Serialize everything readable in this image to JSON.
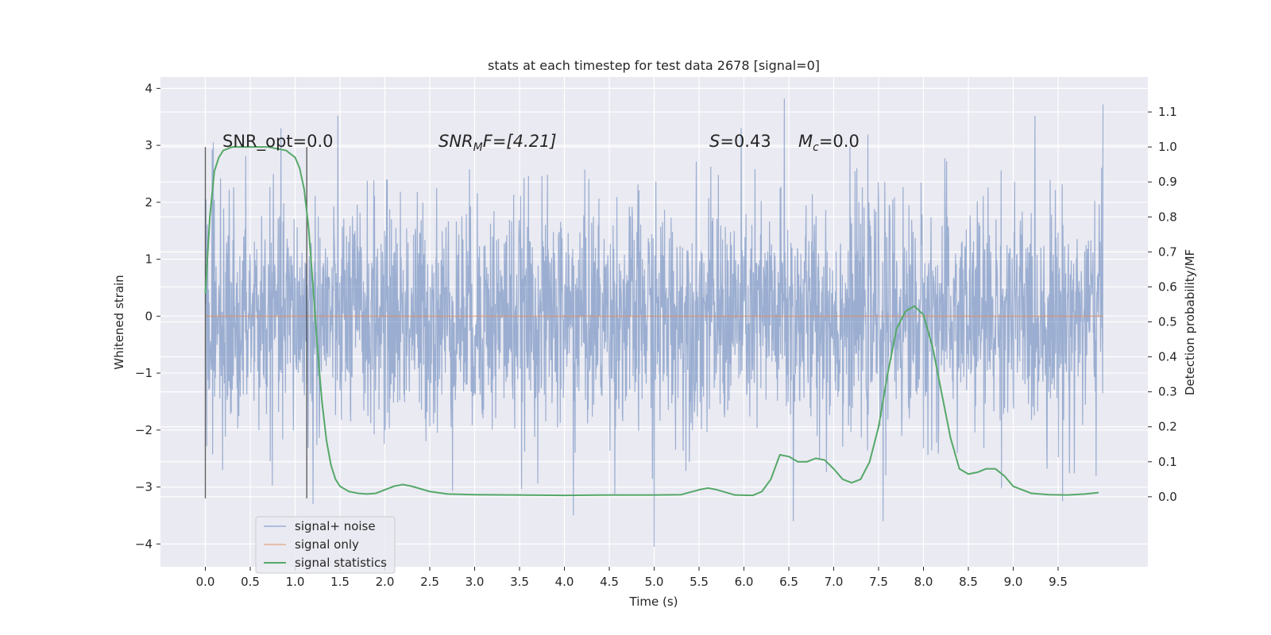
{
  "chart_data": {
    "type": "line",
    "title": "stats at each timestep for test data 2678 [signal=0]",
    "xlabel": "Time (s)",
    "ylabel": "Whitened strain",
    "ylabel_right": "Detection probability/MF",
    "xlim": [
      -0.5,
      10.5
    ],
    "ylim": [
      -4.4,
      4.2
    ],
    "ylim_right": [
      -0.2,
      1.2
    ],
    "x_ticks": [
      "0.0",
      "0.5",
      "1.0",
      "1.5",
      "2.0",
      "2.5",
      "3.0",
      "3.5",
      "4.0",
      "4.5",
      "5.0",
      "5.5",
      "6.0",
      "6.5",
      "7.0",
      "7.5",
      "8.0",
      "8.5",
      "9.0",
      "9.5"
    ],
    "y_ticks": [
      "−4",
      "−3",
      "−2",
      "−1",
      "0",
      "1",
      "2",
      "3",
      "4"
    ],
    "y_ticks_right": [
      "0.0",
      "0.1",
      "0.2",
      "0.3",
      "0.4",
      "0.5",
      "0.6",
      "0.7",
      "0.8",
      "0.9",
      "1.0",
      "1.1"
    ],
    "grid": true,
    "legend_position": "lower-left",
    "annotations": {
      "snr_opt": "SNR_opt=0.0",
      "snr_mf_main": "SNR",
      "snr_mf_sub": "M",
      "snr_mf_rest": "F=[4.21]",
      "s_main": "S",
      "s_rest": "=0.43",
      "mc_main": "M",
      "mc_sub": "c",
      "mc_rest": "=0.0"
    },
    "vlines": [
      0.0,
      1.13
    ],
    "series": [
      {
        "name": "signal+ noise",
        "color": "#4c72b0",
        "noise": {
          "x_start": 0.0,
          "x_end": 10.0,
          "min": -4.05,
          "max": 3.82,
          "peaks": [
            {
              "x": 6.45,
              "y": 3.82
            },
            {
              "x": 10.0,
              "y": 3.72
            },
            {
              "x": 4.1,
              "y": -3.5
            },
            {
              "x": 5.0,
              "y": -4.05
            },
            {
              "x": 6.55,
              "y": -3.6
            },
            {
              "x": 7.55,
              "y": -3.6
            },
            {
              "x": 9.55,
              "y": -3.25
            },
            {
              "x": 1.2,
              "y": -3.3
            }
          ]
        }
      },
      {
        "name": "signal only",
        "color": "#dd8452",
        "x": [
          0.0,
          10.0
        ],
        "y": [
          0.0,
          0.0
        ]
      },
      {
        "name": "signal statistics",
        "color": "#55a868",
        "axis": "right",
        "x": [
          0.0,
          0.05,
          0.1,
          0.15,
          0.2,
          0.3,
          0.5,
          0.7,
          0.9,
          1.0,
          1.05,
          1.1,
          1.15,
          1.2,
          1.25,
          1.3,
          1.35,
          1.4,
          1.45,
          1.5,
          1.6,
          1.7,
          1.8,
          1.9,
          2.0,
          2.1,
          2.2,
          2.3,
          2.5,
          2.7,
          3.0,
          3.5,
          4.0,
          4.5,
          5.0,
          5.3,
          5.5,
          5.6,
          5.7,
          5.9,
          6.1,
          6.2,
          6.3,
          6.4,
          6.5,
          6.6,
          6.7,
          6.8,
          6.9,
          7.0,
          7.1,
          7.2,
          7.3,
          7.4,
          7.5,
          7.6,
          7.7,
          7.8,
          7.9,
          8.0,
          8.1,
          8.2,
          8.3,
          8.4,
          8.5,
          8.6,
          8.7,
          8.8,
          8.9,
          9.0,
          9.2,
          9.4,
          9.6,
          9.8,
          9.95
        ],
        "y": [
          0.58,
          0.8,
          0.93,
          0.97,
          0.99,
          1.0,
          1.0,
          1.0,
          0.99,
          0.97,
          0.94,
          0.88,
          0.77,
          0.6,
          0.42,
          0.27,
          0.16,
          0.09,
          0.05,
          0.03,
          0.015,
          0.01,
          0.008,
          0.01,
          0.02,
          0.03,
          0.035,
          0.03,
          0.015,
          0.008,
          0.006,
          0.005,
          0.004,
          0.005,
          0.005,
          0.006,
          0.02,
          0.025,
          0.02,
          0.005,
          0.004,
          0.015,
          0.05,
          0.12,
          0.115,
          0.1,
          0.1,
          0.11,
          0.105,
          0.08,
          0.05,
          0.04,
          0.05,
          0.1,
          0.2,
          0.35,
          0.48,
          0.53,
          0.545,
          0.52,
          0.43,
          0.3,
          0.17,
          0.08,
          0.065,
          0.07,
          0.08,
          0.08,
          0.06,
          0.03,
          0.01,
          0.006,
          0.005,
          0.008,
          0.012
        ]
      }
    ]
  }
}
